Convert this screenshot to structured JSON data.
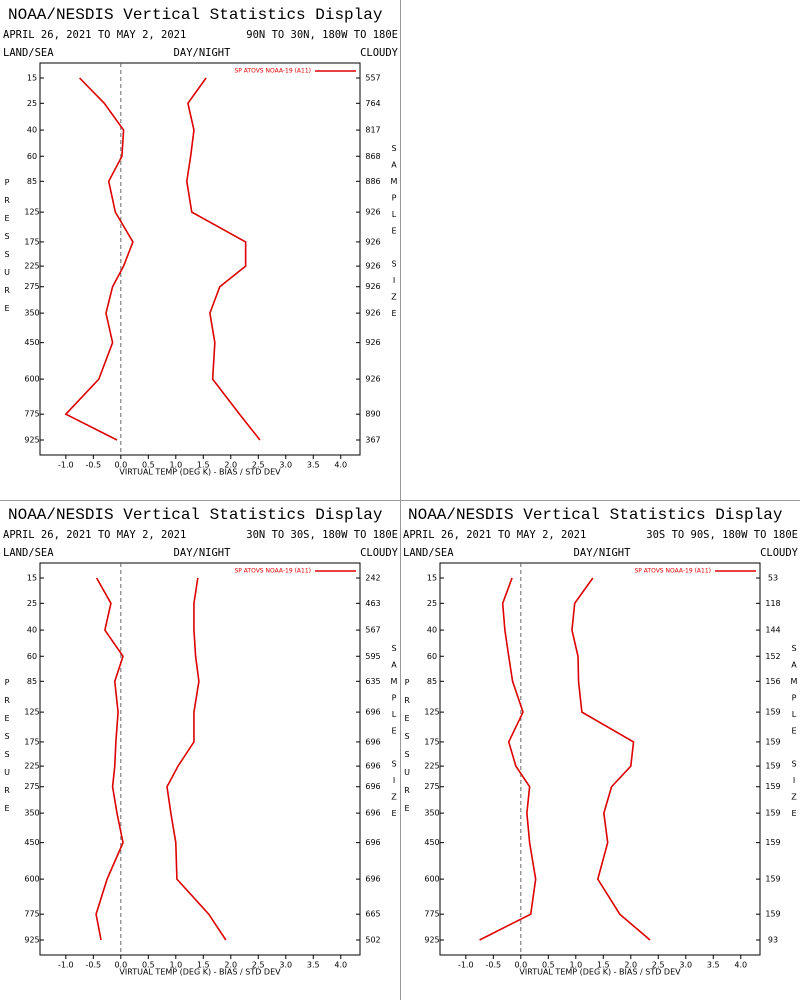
{
  "chart_data": [
    {
      "type": "line",
      "title": "NOAA/NESDIS Vertical Statistics Display",
      "subtitle": "APRIL 26, 2021 TO MAY 2, 2021",
      "region": "90N TO 30N, 180W TO 180E",
      "left_header": "LAND/SEA",
      "center_header": "DAY/NIGHT",
      "right_header": "CLOUDY",
      "y_label": "PRESSURE",
      "y2_label": "SAMPLE SIZE",
      "x_label": "VIRTUAL TEMP (DEG K) - BIAS / STD DEV",
      "y": [
        15,
        25,
        40,
        60,
        85,
        125,
        175,
        225,
        275,
        350,
        450,
        600,
        775,
        925
      ],
      "sample_sizes": [
        557,
        764,
        817,
        868,
        886,
        926,
        926,
        926,
        926,
        926,
        926,
        926,
        890,
        367
      ],
      "series": [
        {
          "name": "SP ATOVS NOAA-19 (A11)",
          "color": "#dd0000",
          "values": [
            -0.75,
            -0.3,
            0.05,
            0.02,
            -0.22,
            -0.1,
            0.22,
            0.05,
            -0.15,
            -0.27,
            -0.15,
            -0.4,
            -1.0,
            -0.07
          ]
        },
        {
          "color": "#dd0000",
          "values": [
            1.55,
            1.22,
            1.33,
            1.27,
            1.2,
            1.29,
            2.27,
            2.27,
            1.8,
            1.62,
            1.71,
            1.67,
            2.16,
            2.53
          ]
        }
      ],
      "zero_line": true,
      "xlim": [
        -1.47,
        4.35
      ],
      "xticks": [
        {
          "value": -1,
          "label": "-1.0"
        },
        -0.5,
        {
          "value": 0,
          "label": "0.0"
        },
        0.5,
        {
          "value": 1,
          "label": "1.0"
        },
        1.5,
        {
          "value": 2,
          "label": "2.0"
        },
        2.5,
        {
          "value": 3,
          "label": "3.0"
        },
        3.5,
        {
          "value": 4,
          "label": "4.0"
        }
      ]
    },
    {
      "type": "line",
      "title": "NOAA/NESDIS Vertical Statistics Display",
      "subtitle": "APRIL 26, 2021 TO MAY 2, 2021",
      "region": "30N TO 30S, 180W TO 180E",
      "left_header": "LAND/SEA",
      "center_header": "DAY/NIGHT",
      "right_header": "CLOUDY",
      "y_label": "PRESSURE",
      "y2_label": "SAMPLE SIZE",
      "x_label": "VIRTUAL TEMP (DEG K) - BIAS / STD DEV",
      "y": [
        15,
        25,
        40,
        60,
        85,
        125,
        175,
        225,
        275,
        350,
        450,
        600,
        775,
        925
      ],
      "sample_sizes": [
        242,
        463,
        567,
        595,
        635,
        696,
        696,
        696,
        696,
        696,
        696,
        696,
        665,
        502
      ],
      "series": [
        {
          "name": "SP ATOVS NOAA-19 (A11)",
          "color": "#dd0000",
          "values": [
            -0.44,
            -0.18,
            -0.29,
            0.04,
            -0.11,
            -0.05,
            -0.09,
            -0.11,
            -0.15,
            -0.07,
            0.04,
            -0.25,
            -0.45,
            -0.36
          ]
        },
        {
          "color": "#dd0000",
          "values": [
            1.4,
            1.33,
            1.33,
            1.36,
            1.42,
            1.33,
            1.33,
            1.04,
            0.84,
            0.91,
            1.0,
            1.02,
            1.6,
            1.91
          ]
        }
      ],
      "zero_line": true,
      "xlim": [
        -1.47,
        4.35
      ],
      "xticks": [
        {
          "value": -1,
          "label": "-1.0"
        },
        -0.5,
        {
          "value": 0,
          "label": "0.0"
        },
        0.5,
        {
          "value": 1,
          "label": "1.0"
        },
        1.5,
        {
          "value": 2,
          "label": "2.0"
        },
        2.5,
        {
          "value": 3,
          "label": "3.0"
        },
        3.5,
        {
          "value": 4,
          "label": "4.0"
        }
      ]
    },
    {
      "type": "line",
      "title": "NOAA/NESDIS Vertical Statistics Display",
      "subtitle": "APRIL 26, 2021 TO MAY 2, 2021",
      "region": "30S TO 90S, 180W TO 180E",
      "left_header": "LAND/SEA",
      "center_header": "DAY/NIGHT",
      "right_header": "CLOUDY",
      "y_label": "PRESSURE",
      "y2_label": "SAMPLE SIZE",
      "x_label": "VIRTUAL TEMP (DEG K) - BIAS / STD DEV",
      "y": [
        15,
        25,
        40,
        60,
        85,
        125,
        175,
        225,
        275,
        350,
        450,
        600,
        775,
        925
      ],
      "sample_sizes": [
        53,
        118,
        144,
        152,
        156,
        159,
        159,
        159,
        159,
        159,
        159,
        159,
        159,
        93
      ],
      "series": [
        {
          "name": "SP ATOVS NOAA-19 (A11)",
          "color": "#dd0000",
          "values": [
            -0.16,
            -0.33,
            -0.29,
            -0.22,
            -0.15,
            0.04,
            -0.22,
            -0.09,
            0.16,
            0.11,
            0.16,
            0.27,
            0.18,
            -0.75
          ]
        },
        {
          "color": "#dd0000",
          "values": [
            1.31,
            0.98,
            0.93,
            1.04,
            1.05,
            1.11,
            2.05,
            2.0,
            1.65,
            1.51,
            1.58,
            1.4,
            1.8,
            2.35
          ]
        }
      ],
      "zero_line": true,
      "xlim": [
        -1.47,
        4.35
      ],
      "xticks": [
        {
          "value": -1,
          "label": "-1.0"
        },
        -0.5,
        {
          "value": 0,
          "label": "0.0"
        },
        0.5,
        {
          "value": 1,
          "label": "1.0"
        },
        1.5,
        {
          "value": 2,
          "label": "2.0"
        },
        2.5,
        {
          "value": 3,
          "label": "3.0"
        },
        3.5,
        {
          "value": 4,
          "label": "4.0"
        }
      ]
    }
  ]
}
